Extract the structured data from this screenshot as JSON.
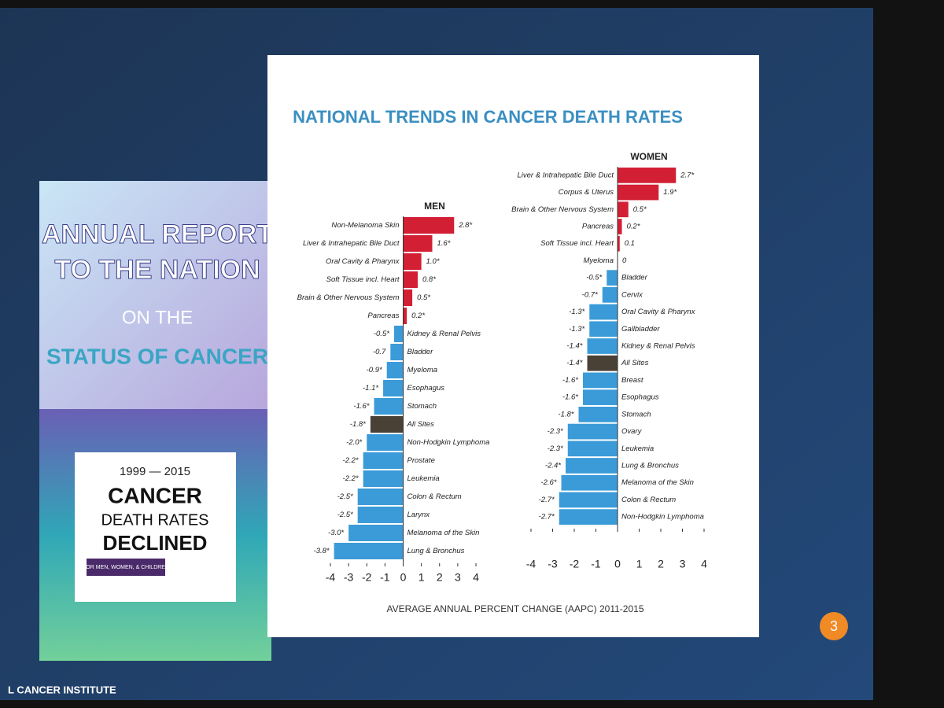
{
  "slide": {
    "title": "NATIONAL TRENDS IN CANCER DEATH RATES",
    "x_label": "AVERAGE ANNUAL PERCENT CHANGE (AAPC) 2011-2015",
    "page_number": "3",
    "footer": "L CANCER INSTITUTE",
    "report": {
      "line1": "ANNUAL REPORT",
      "line2": "TO THE NATION",
      "line3": "ON THE",
      "line4": "STATUS OF CANCER"
    },
    "callout": {
      "years": "1999 — 2015",
      "line1": "CANCER",
      "line2": "DEATH RATES",
      "line3": "DECLINED",
      "note": "FOR MEN, WOMEN, & CHILDREN"
    }
  },
  "chart_data": [
    {
      "type": "bar",
      "orientation": "horizontal",
      "title": "MEN",
      "categories": [
        "Non-Melanoma Skin",
        "Liver & Intrahepatic Bile Duct",
        "Oral Cavity & Pharynx",
        "Soft Tissue incl. Heart",
        "Brain & Other Nervous System",
        "Pancreas",
        "Kidney & Renal Pelvis",
        "Bladder",
        "Myeloma",
        "Esophagus",
        "Stomach",
        "All Sites",
        "Non-Hodgkin Lymphoma",
        "Prostate",
        "Leukemia",
        "Colon & Rectum",
        "Larynx",
        "Melanoma of the Skin",
        "Lung & Bronchus"
      ],
      "values": [
        2.8,
        1.6,
        1.0,
        0.8,
        0.5,
        0.2,
        -0.5,
        -0.7,
        -0.9,
        -1.1,
        -1.6,
        -1.8,
        -2.0,
        -2.2,
        -2.2,
        -2.5,
        -2.5,
        -3.0,
        -3.8
      ],
      "value_labels": [
        "2.8*",
        "1.6*",
        "1.0*",
        "0.8*",
        "0.5*",
        "0.2*",
        "-0.5*",
        "-0.7",
        "-0.9*",
        "-1.1*",
        "-1.6*",
        "-1.8*",
        "-2.0*",
        "-2.2*",
        "-2.2*",
        "-2.5*",
        "-2.5*",
        "-3.0*",
        "-3.8*"
      ],
      "colors": [
        "#d21f34",
        "#d21f34",
        "#d21f34",
        "#d21f34",
        "#d21f34",
        "#d21f34",
        "#3b9bd8",
        "#3b9bd8",
        "#3b9bd8",
        "#3b9bd8",
        "#3b9bd8",
        "#4a4136",
        "#3b9bd8",
        "#3b9bd8",
        "#3b9bd8",
        "#3b9bd8",
        "#3b9bd8",
        "#3b9bd8",
        "#3b9bd8"
      ],
      "xlim": [
        -4,
        4
      ],
      "xticks": [
        -4,
        -3,
        -2,
        -1,
        0,
        1,
        2,
        3,
        4
      ]
    },
    {
      "type": "bar",
      "orientation": "horizontal",
      "title": "WOMEN",
      "categories": [
        "Liver & Intrahepatic Bile Duct",
        "Corpus & Uterus",
        "Brain & Other Nervous System",
        "Pancreas",
        "Soft Tissue incl. Heart",
        "Myeloma",
        "Bladder",
        "Cervix",
        "Oral Cavity & Pharynx",
        "Gallbladder",
        "Kidney & Renal Pelvis",
        "All Sites",
        "Breast",
        "Esophagus",
        "Stomach",
        "Ovary",
        "Leukemia",
        "Lung & Bronchus",
        "Melanoma of the Skin",
        "Colon & Rectum",
        "Non-Hodgkin Lymphoma"
      ],
      "values": [
        2.7,
        1.9,
        0.5,
        0.2,
        0.1,
        0,
        -0.5,
        -0.7,
        -1.3,
        -1.3,
        -1.4,
        -1.4,
        -1.6,
        -1.6,
        -1.8,
        -2.3,
        -2.3,
        -2.4,
        -2.6,
        -2.7,
        -2.7
      ],
      "value_labels": [
        "2.7*",
        "1.9*",
        "0.5*",
        "0.2*",
        "0.1",
        "0",
        "-0.5*",
        "-0.7*",
        "-1.3*",
        "-1.3*",
        "-1.4*",
        "-1.4*",
        "-1.6*",
        "-1.6*",
        "-1.8*",
        "-2.3*",
        "-2.3*",
        "-2.4*",
        "-2.6*",
        "-2.7*",
        "-2.7*"
      ],
      "colors": [
        "#d21f34",
        "#d21f34",
        "#d21f34",
        "#d21f34",
        "#d21f34",
        "#d21f34",
        "#3b9bd8",
        "#3b9bd8",
        "#3b9bd8",
        "#3b9bd8",
        "#3b9bd8",
        "#4a4136",
        "#3b9bd8",
        "#3b9bd8",
        "#3b9bd8",
        "#3b9bd8",
        "#3b9bd8",
        "#3b9bd8",
        "#3b9bd8",
        "#3b9bd8",
        "#3b9bd8"
      ],
      "xlim": [
        -4,
        4
      ],
      "xticks": [
        -4,
        -3,
        -2,
        -1,
        0,
        1,
        2,
        3,
        4
      ]
    }
  ]
}
